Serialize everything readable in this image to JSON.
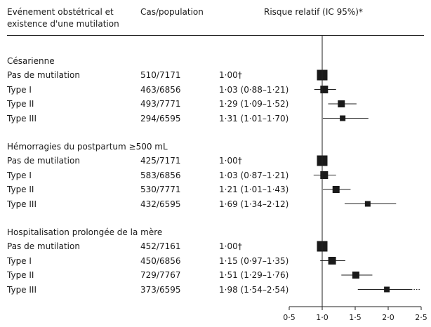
{
  "chart_data": {
    "type": "forest",
    "columns": {
      "event": [
        "Evénement obstétrical et",
        "existence d'une mutilation"
      ],
      "cases": "Cas/population",
      "rr": "Risque relatif (IC 95%)*"
    },
    "xticks": [
      "0·5",
      "1·0",
      "1·5",
      "2·0",
      "2·5"
    ],
    "xtick_values": [
      0.5,
      1.0,
      1.5,
      2.0,
      2.5
    ],
    "xlim": [
      0.5,
      2.5
    ],
    "reference_line": 1.0,
    "sections": [
      {
        "title": "Césarienne",
        "rows": [
          {
            "label": "Pas de mutilation",
            "cases": "510/7171",
            "rr_text": "1·00†",
            "rr": 1.0,
            "lo": null,
            "hi": null,
            "ref": true
          },
          {
            "label": "Type I",
            "cases": "463/6856",
            "rr_text": "1·03 (0·88–1·21)",
            "rr": 1.03,
            "lo": 0.88,
            "hi": 1.21
          },
          {
            "label": "Type II",
            "cases": "493/7771",
            "rr_text": "1·29 (1·09–1·52)",
            "rr": 1.29,
            "lo": 1.09,
            "hi": 1.52
          },
          {
            "label": "Type III",
            "cases": "294/6595",
            "rr_text": "1·31 (1·01–1·70)",
            "rr": 1.31,
            "lo": 1.01,
            "hi": 1.7
          }
        ]
      },
      {
        "title": "Hémorragies du postpartum ≥500 mL",
        "rows": [
          {
            "label": "Pas de mutilation",
            "cases": "425/7171",
            "rr_text": "1·00†",
            "rr": 1.0,
            "lo": null,
            "hi": null,
            "ref": true
          },
          {
            "label": "Type I",
            "cases": "583/6856",
            "rr_text": "1·03 (0·87–1·21)",
            "rr": 1.03,
            "lo": 0.87,
            "hi": 1.21
          },
          {
            "label": "Type II",
            "cases": "530/7771",
            "rr_text": "1·21 (1·01–1·43)",
            "rr": 1.21,
            "lo": 1.01,
            "hi": 1.43
          },
          {
            "label": "Type III",
            "cases": "432/6595",
            "rr_text": "1·69 (1·34–2·12)",
            "rr": 1.69,
            "lo": 1.34,
            "hi": 2.12
          }
        ]
      },
      {
        "title": "Hospitalisation prolongée de la mère",
        "rows": [
          {
            "label": "Pas de mutilation",
            "cases": "452/7161",
            "rr_text": "1·00†",
            "rr": 1.0,
            "lo": null,
            "hi": null,
            "ref": true
          },
          {
            "label": "Type I",
            "cases": "450/6856",
            "rr_text": "1·15 (0·97–1·35)",
            "rr": 1.15,
            "lo": 0.97,
            "hi": 1.35
          },
          {
            "label": "Type II",
            "cases": "729/7767",
            "rr_text": "1·51 (1·29–1·76)",
            "rr": 1.51,
            "lo": 1.29,
            "hi": 1.76
          },
          {
            "label": "Type III",
            "cases": "373/6595",
            "rr_text": "1·98 (1·54–2·54)",
            "rr": 1.98,
            "lo": 1.54,
            "hi": 2.54,
            "hi_open": true
          }
        ]
      }
    ]
  }
}
